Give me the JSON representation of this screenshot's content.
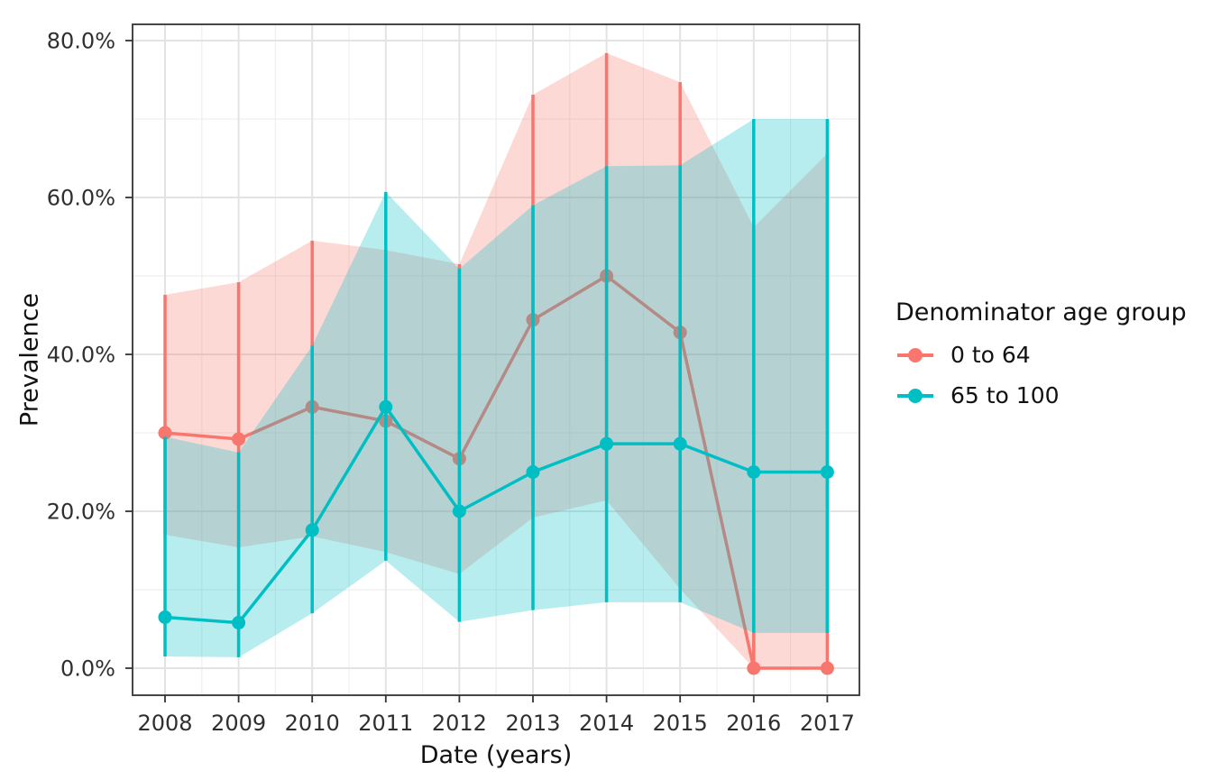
{
  "chart_data": {
    "type": "line",
    "title": "",
    "xlabel": "Date (years)",
    "ylabel": "Prevalence",
    "legend_title": "Denominator age group",
    "legend_position": "right",
    "grid": true,
    "x": [
      2008,
      2009,
      2010,
      2011,
      2012,
      2013,
      2014,
      2015,
      2016,
      2017
    ],
    "x_tick_labels": [
      "2008",
      "2009",
      "2010",
      "2011",
      "2012",
      "2013",
      "2014",
      "2015",
      "2016",
      "2017"
    ],
    "y_tick_labels": [
      "0.0%",
      "20.0%",
      "40.0%",
      "60.0%",
      "80.0%"
    ],
    "y_tick_values": [
      0,
      20,
      40,
      60,
      80
    ],
    "y_minor_values": [
      10,
      30,
      50,
      70
    ],
    "ylim": [
      0,
      80
    ],
    "y_unit": "percent",
    "ribbon_opacity": 0.28,
    "series": [
      {
        "name": "0 to 64",
        "color": "#F8766D",
        "values": [
          30.0,
          29.2,
          33.3,
          31.5,
          26.7,
          44.4,
          50.0,
          42.8,
          0.0,
          0.0
        ],
        "lower": [
          17.0,
          15.4,
          16.8,
          14.8,
          12.0,
          19.2,
          21.4,
          10.1,
          0.0,
          0.0
        ],
        "upper": [
          47.6,
          49.2,
          54.5,
          53.3,
          51.5,
          73.1,
          78.4,
          74.7,
          56.2,
          65.6
        ]
      },
      {
        "name": "65 to 100",
        "color": "#00BFC4",
        "values": [
          6.5,
          5.8,
          17.6,
          33.3,
          20.0,
          25.0,
          28.6,
          28.6,
          25.0,
          25.0
        ],
        "lower": [
          1.5,
          1.4,
          7.0,
          13.7,
          5.9,
          7.4,
          8.4,
          8.4,
          4.5,
          4.5
        ],
        "upper": [
          29.5,
          27.5,
          41.1,
          60.7,
          50.9,
          59.0,
          64.0,
          64.1,
          70.0,
          70.0
        ]
      }
    ],
    "panel": {
      "background": "#ffffff",
      "border_color": "#333333",
      "grid_major_color": "#e3e3e3",
      "grid_minor_color": "#efefef",
      "tick_color": "#333333",
      "text_color": "#2f2f2f"
    }
  }
}
